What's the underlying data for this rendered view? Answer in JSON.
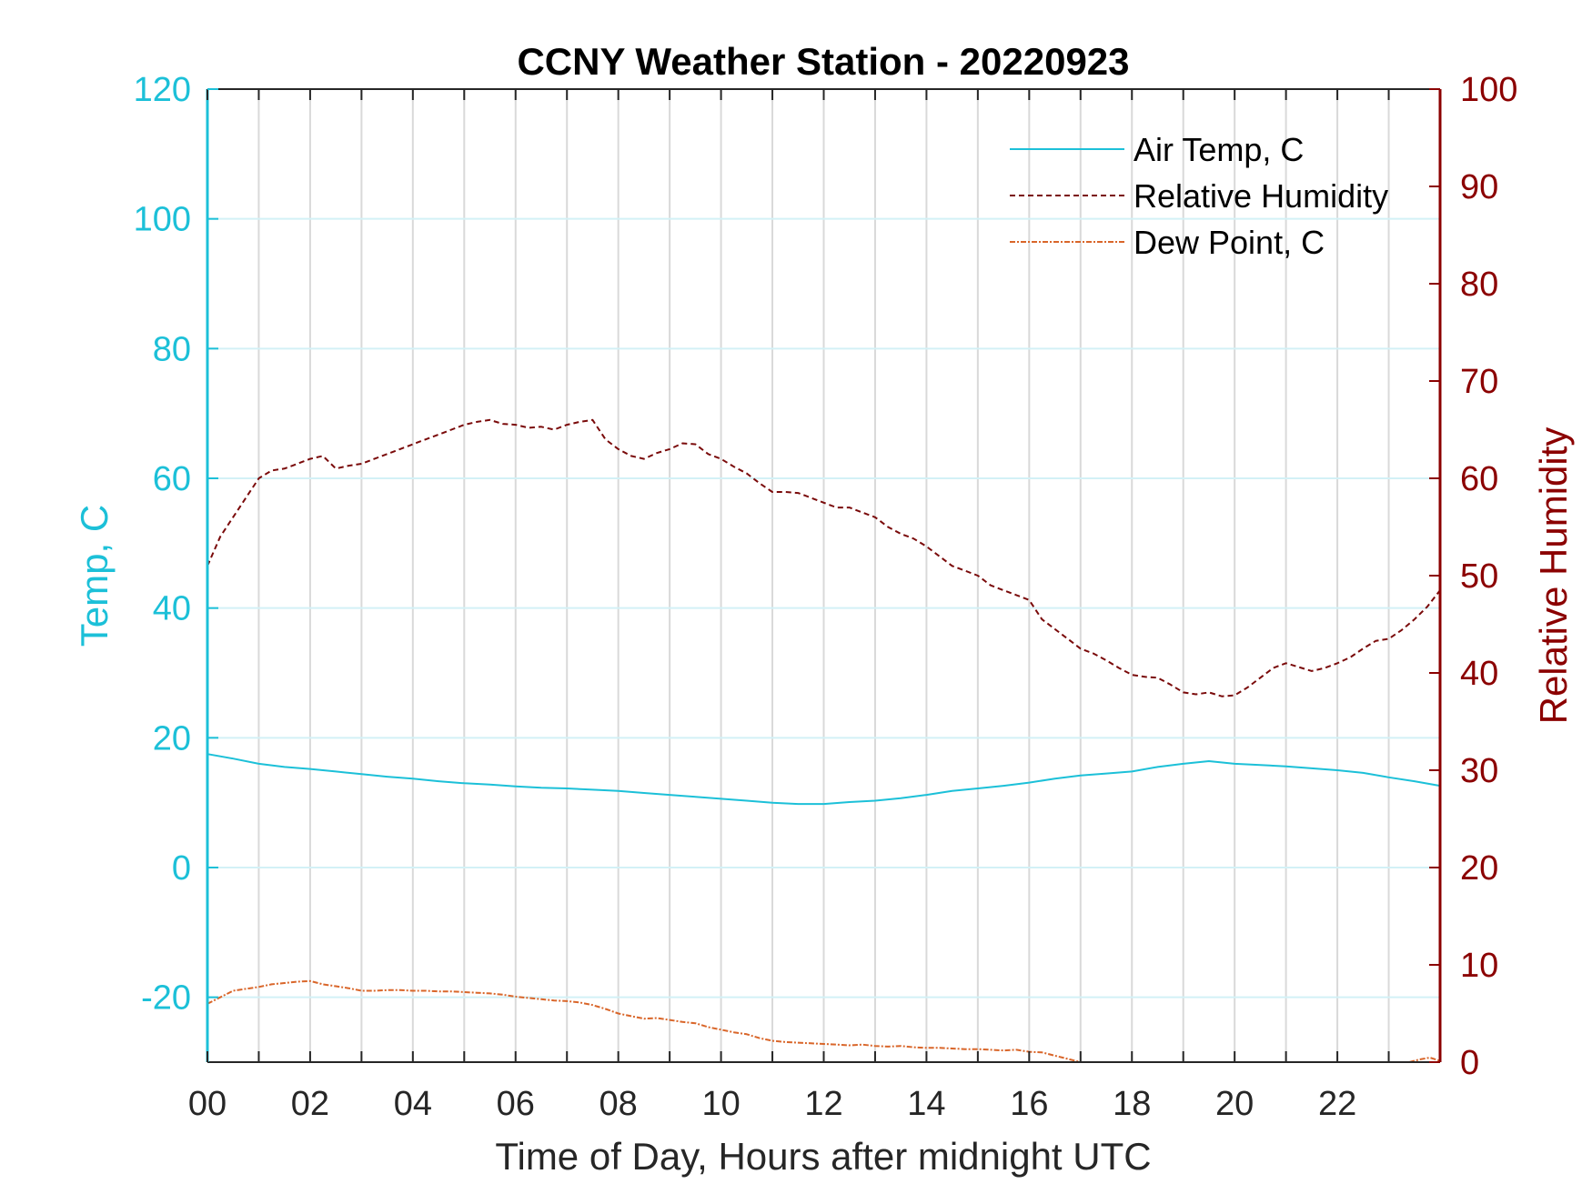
{
  "chart_data": {
    "type": "line",
    "title": "CCNY Weather Station - 20220923",
    "xlabel": "Time of Day, Hours after midnight UTC",
    "ylabel_left": "Temp, C",
    "ylabel_right": "Relative Humidity",
    "xlim": [
      0,
      24
    ],
    "ylim_left": [
      -30,
      120
    ],
    "ylim_right": [
      0,
      100
    ],
    "x_ticks": [
      0,
      2,
      4,
      6,
      8,
      10,
      12,
      14,
      16,
      18,
      20,
      22
    ],
    "x_tick_labels": [
      "00",
      "02",
      "04",
      "06",
      "08",
      "10",
      "12",
      "14",
      "16",
      "18",
      "20",
      "22"
    ],
    "y_left_ticks": [
      -20,
      0,
      20,
      40,
      60,
      80,
      100,
      120
    ],
    "y_left_tick_labels": [
      "-20",
      "0",
      "20",
      "40",
      "60",
      "80",
      "100",
      "120"
    ],
    "y_right_ticks": [
      0,
      10,
      20,
      30,
      40,
      50,
      60,
      70,
      80,
      90,
      100
    ],
    "y_right_tick_labels": [
      "0",
      "10",
      "20",
      "30",
      "40",
      "50",
      "60",
      "70",
      "80",
      "90",
      "100"
    ],
    "grid": true,
    "legend_position": "top-right",
    "colors": {
      "air_temp": "#1cc0d8",
      "humidity": "#7a0a0a",
      "dew_point": "#d9662a",
      "left_axis": "#1cc0d8",
      "right_axis": "#8b0000",
      "vertical_grid": "#d9d9d9",
      "horizontal_grid": "#d3f1f6"
    },
    "series": [
      {
        "name": "Air Temp, C",
        "axis": "left",
        "style": "solid",
        "x": [
          0,
          0.5,
          1,
          1.5,
          2,
          2.5,
          3,
          3.5,
          4,
          4.5,
          5,
          5.5,
          6,
          6.5,
          7,
          7.5,
          8,
          8.5,
          9,
          9.5,
          10,
          10.5,
          11,
          11.5,
          12,
          12.5,
          13,
          13.5,
          14,
          14.5,
          15,
          15.5,
          16,
          16.5,
          17,
          17.5,
          18,
          18.5,
          19,
          19.5,
          20,
          20.5,
          21,
          21.5,
          22,
          22.5,
          23,
          23.5,
          24
        ],
        "values": [
          17.5,
          16.8,
          16.0,
          15.5,
          15.2,
          14.8,
          14.4,
          14.0,
          13.7,
          13.3,
          13.0,
          12.8,
          12.5,
          12.3,
          12.2,
          12.0,
          11.8,
          11.5,
          11.2,
          10.9,
          10.6,
          10.3,
          10.0,
          9.8,
          9.8,
          10.1,
          10.3,
          10.7,
          11.2,
          11.8,
          12.2,
          12.6,
          13.1,
          13.7,
          14.2,
          14.5,
          14.8,
          15.5,
          16.0,
          16.4,
          16.0,
          15.8,
          15.6,
          15.3,
          15.0,
          14.6,
          13.9,
          13.3,
          12.6
        ]
      },
      {
        "name": "Relative Humidity",
        "axis": "right",
        "style": "dashed",
        "x": [
          0,
          0.25,
          0.5,
          0.75,
          1,
          1.25,
          1.5,
          1.75,
          2,
          2.25,
          2.5,
          2.75,
          3,
          3.25,
          3.5,
          3.75,
          4,
          4.25,
          4.5,
          4.75,
          5,
          5.25,
          5.5,
          5.75,
          6,
          6.25,
          6.5,
          6.75,
          7,
          7.25,
          7.5,
          7.75,
          8,
          8.25,
          8.5,
          8.75,
          9,
          9.25,
          9.5,
          9.75,
          10,
          10.25,
          10.5,
          10.75,
          11,
          11.25,
          11.5,
          11.75,
          12,
          12.25,
          12.5,
          12.75,
          13,
          13.25,
          13.5,
          13.75,
          14,
          14.25,
          14.5,
          14.75,
          15,
          15.25,
          15.5,
          15.75,
          16,
          16.25,
          16.5,
          16.75,
          17,
          17.25,
          17.5,
          17.75,
          18,
          18.25,
          18.5,
          18.75,
          19,
          19.25,
          19.5,
          19.75,
          20,
          20.25,
          20.5,
          20.75,
          21,
          21.25,
          21.5,
          21.75,
          22,
          22.25,
          22.5,
          22.75,
          23,
          23.25,
          23.5,
          23.75,
          24
        ],
        "values": [
          51,
          54,
          56,
          58,
          60,
          60.8,
          61,
          61.5,
          62,
          62.3,
          61,
          61.3,
          61.5,
          62,
          62.5,
          63,
          63.5,
          64,
          64.5,
          65,
          65.5,
          65.8,
          66,
          65.6,
          65.5,
          65.2,
          65.3,
          65,
          65.5,
          65.8,
          66,
          64,
          63,
          62.3,
          62,
          62.6,
          63,
          63.6,
          63.5,
          62.5,
          62,
          61.2,
          60.5,
          59.5,
          58.6,
          58.6,
          58.5,
          58,
          57.5,
          57,
          57,
          56.5,
          56,
          55,
          54.3,
          53.8,
          53,
          52,
          51,
          50.5,
          50,
          49,
          48.5,
          48,
          47.5,
          45.5,
          44.5,
          43.5,
          42.5,
          42,
          41.3,
          40.5,
          39.8,
          39.6,
          39.5,
          38.8,
          38,
          37.8,
          38,
          37.6,
          37.7,
          38.5,
          39.5,
          40.5,
          41,
          40.6,
          40.2,
          40.5,
          41,
          41.6,
          42.5,
          43.3,
          43.5,
          44.4,
          45.5,
          46.8,
          48.5
        ]
      },
      {
        "name": "Dew Point, C",
        "axis": "left",
        "style": "dashdot",
        "x": [
          0,
          0.25,
          0.5,
          0.75,
          1,
          1.25,
          1.5,
          1.75,
          2,
          2.25,
          2.5,
          2.75,
          3,
          3.25,
          3.5,
          3.75,
          4,
          4.25,
          4.5,
          4.75,
          5,
          5.25,
          5.5,
          5.75,
          6,
          6.25,
          6.5,
          6.75,
          7,
          7.25,
          7.5,
          7.75,
          8,
          8.25,
          8.5,
          8.75,
          9,
          9.25,
          9.5,
          9.75,
          10,
          10.25,
          10.5,
          10.75,
          11,
          11.25,
          11.5,
          11.75,
          12,
          12.25,
          12.5,
          12.75,
          13,
          13.25,
          13.5,
          13.75,
          14,
          14.25,
          14.5,
          14.75,
          15,
          15.25,
          15.5,
          15.75,
          16,
          16.25,
          16.5,
          16.75,
          17,
          17.2
        ],
        "values": [
          -21,
          -20,
          -19,
          -18.7,
          -18.4,
          -18,
          -17.8,
          -17.6,
          -17.5,
          -18,
          -18.3,
          -18.6,
          -19,
          -19,
          -18.9,
          -18.9,
          -19,
          -19,
          -19.1,
          -19.1,
          -19.2,
          -19.3,
          -19.4,
          -19.6,
          -19.9,
          -20.1,
          -20.3,
          -20.5,
          -20.6,
          -20.8,
          -21.2,
          -21.8,
          -22.5,
          -22.9,
          -23.3,
          -23.2,
          -23.5,
          -23.8,
          -24,
          -24.6,
          -25,
          -25.4,
          -25.7,
          -26.3,
          -26.7,
          -26.9,
          -27,
          -27.1,
          -27.2,
          -27.3,
          -27.4,
          -27.3,
          -27.5,
          -27.6,
          -27.5,
          -27.7,
          -27.8,
          -27.8,
          -27.9,
          -28,
          -28,
          -28.1,
          -28.2,
          -28.1,
          -28.4,
          -28.5,
          -29,
          -29.5,
          -30,
          -30.3
        ]
      },
      {
        "name": "",
        "axis": "left",
        "style": "dashdot",
        "x": [
          23.4,
          23.6,
          23.8,
          24
        ],
        "values": [
          -30.2,
          -29.6,
          -29.3,
          -29.8
        ]
      }
    ]
  }
}
